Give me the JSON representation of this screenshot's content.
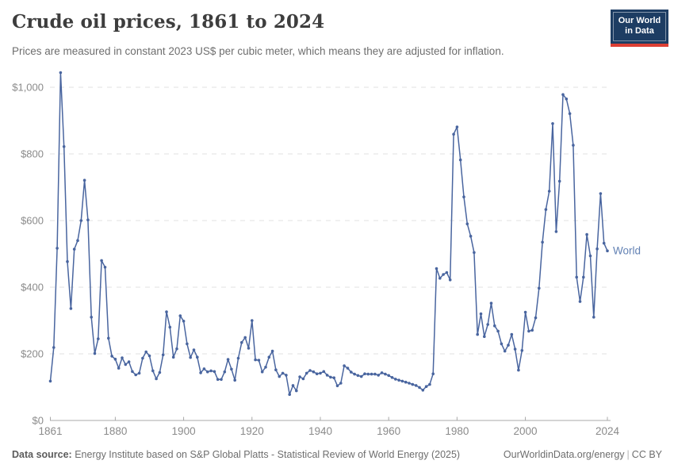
{
  "header": {
    "title": "Crude oil prices, 1861 to 2024",
    "subtitle": "Prices are measured in constant 2023 US$ per cubic meter, which means they are adjusted for inflation."
  },
  "logo": {
    "line1": "Our World",
    "line2": "in Data"
  },
  "footer": {
    "source_label": "Data source:",
    "source_text": " Energy Institute based on S&P Global Platts - Statistical Review of World Energy (2025)",
    "site_text": "OurWorldinData.org/energy",
    "separator": "|",
    "license_text": "CC BY"
  },
  "chart_data": {
    "type": "line",
    "title": "Crude oil prices, 1861 to 2024",
    "xlabel": "",
    "ylabel": "constant 2023 US$ per cubic meter",
    "x_range": [
      1861,
      2024
    ],
    "ylim": [
      0,
      1050
    ],
    "grid": "horizontal-dashed",
    "legend_position": "end-of-line-label",
    "yticks": [
      {
        "value": 0,
        "label": "$0"
      },
      {
        "value": 200,
        "label": "$200"
      },
      {
        "value": 400,
        "label": "$400"
      },
      {
        "value": 600,
        "label": "$600"
      },
      {
        "value": 800,
        "label": "$800"
      },
      {
        "value": 1000,
        "label": "$1,000"
      }
    ],
    "xticks": [
      1861,
      1880,
      1900,
      1920,
      1940,
      1960,
      1980,
      2000,
      2024
    ],
    "series": [
      {
        "name": "World",
        "start_year": 1861,
        "end_year": 2024,
        "values": [
          118,
          219,
          517,
          1044,
          822,
          477,
          336,
          514,
          540,
          600,
          721,
          602,
          310,
          201,
          245,
          480,
          460,
          247,
          193,
          184,
          157,
          188,
          168,
          176,
          147,
          137,
          142,
          187,
          206,
          194,
          149,
          125,
          144,
          197,
          326,
          280,
          190,
          215,
          314,
          298,
          230,
          189,
          212,
          190,
          143,
          155,
          146,
          149,
          147,
          123,
          123,
          146,
          183,
          154,
          121,
          187,
          234,
          249,
          217,
          300,
          182,
          181,
          146,
          160,
          190,
          208,
          152,
          132,
          142,
          136,
          78,
          105,
          89,
          131,
          125,
          142,
          150,
          146,
          140,
          142,
          147,
          136,
          130,
          128,
          104,
          112,
          164,
          157,
          145,
          139,
          135,
          132,
          140,
          139,
          139,
          139,
          136,
          143,
          139,
          135,
          129,
          124,
          121,
          118,
          115,
          112,
          108,
          105,
          99,
          91,
          102,
          108,
          140,
          456,
          427,
          438,
          444,
          422,
          859,
          881,
          782,
          671,
          590,
          553,
          504,
          258,
          320,
          252,
          288,
          352,
          284,
          268,
          230,
          208,
          226,
          258,
          214,
          151,
          210,
          325,
          268,
          271,
          308,
          397,
          535,
          633,
          688,
          891,
          567,
          718,
          978,
          965,
          921,
          826,
          430,
          357,
          430,
          558,
          494,
          310,
          515,
          681,
          532,
          509
        ]
      }
    ],
    "colors": {
      "line": "#49659f",
      "series_label": "#6382b4",
      "grid": "#e0e0e0",
      "axis": "#a8a8a8",
      "tick_label": "#8b8b8b"
    }
  }
}
